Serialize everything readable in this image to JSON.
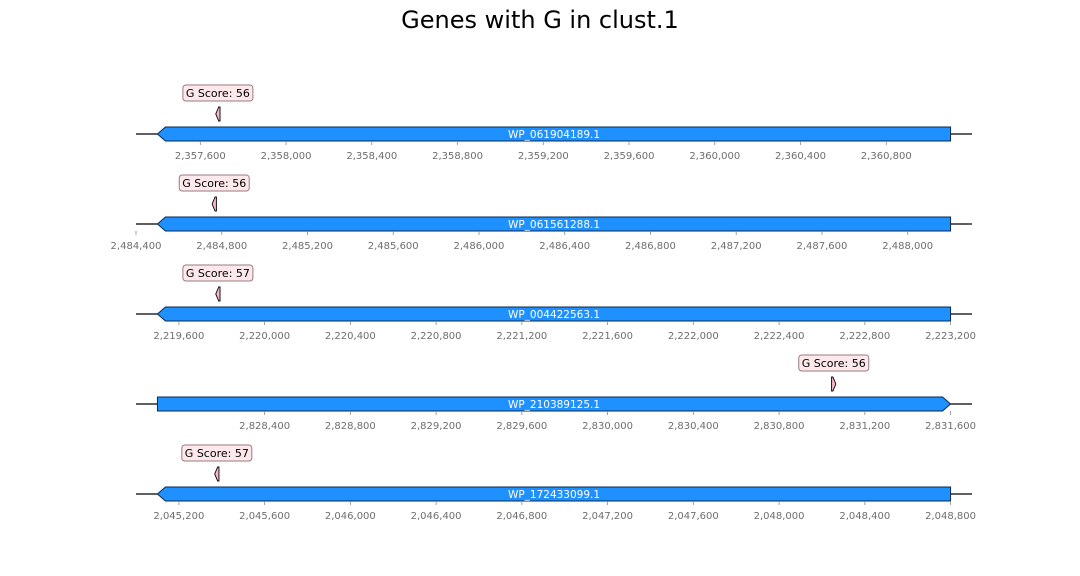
{
  "title": "Genes with G in clust.1",
  "colors": {
    "gene_fill": "#1e90ff",
    "gene_stroke": "#0a2a4a",
    "marker_fill": "#f4b8c6",
    "badge_fill": "#fde8ec",
    "badge_stroke": "#9a7a80",
    "axis_line": "#000000",
    "tick_text": "#6e6e6e"
  },
  "chart_data": {
    "type": "gene-track",
    "tracks": [
      {
        "gene": "WP_061904189.1",
        "strand": "-",
        "gene_start": 2357400,
        "gene_end": 2361100,
        "view_start": 2357300,
        "view_end": 2361200,
        "ticks": [
          2357600,
          2358000,
          2358400,
          2358800,
          2359200,
          2359600,
          2360000,
          2360400,
          2360800
        ],
        "tick_labels": [
          "2,357,600",
          "2,358,000",
          "2,358,400",
          "2,358,800",
          "2,359,200",
          "2,359,600",
          "2,360,000",
          "2,360,400",
          "2,360,800"
        ],
        "feature": {
          "start": 2357672,
          "end": 2357692,
          "strand": "-",
          "label": "G Score: 56"
        }
      },
      {
        "gene": "WP_061561288.1",
        "strand": "-",
        "gene_start": 2484500,
        "gene_end": 2488200,
        "view_start": 2484400,
        "view_end": 2488300,
        "ticks": [
          2484400,
          2484800,
          2485200,
          2485600,
          2486000,
          2486400,
          2486800,
          2487200,
          2487600,
          2488000
        ],
        "tick_labels": [
          "2,484,400",
          "2,484,800",
          "2,485,200",
          "2,485,600",
          "2,486,000",
          "2,486,400",
          "2,486,800",
          "2,487,200",
          "2,487,600",
          "2,488,000"
        ],
        "feature": {
          "start": 2484755,
          "end": 2484775,
          "strand": "-",
          "label": "G Score: 56"
        }
      },
      {
        "gene": "WP_004422563.1",
        "strand": "-",
        "gene_start": 2219500,
        "gene_end": 2223200,
        "view_start": 2219400,
        "view_end": 2223300,
        "ticks": [
          2219600,
          2220000,
          2220400,
          2220800,
          2221200,
          2221600,
          2222000,
          2222400,
          2222800,
          2223200
        ],
        "tick_labels": [
          "2,219,600",
          "2,220,000",
          "2,220,400",
          "2,220,800",
          "2,221,200",
          "2,221,600",
          "2,222,000",
          "2,222,400",
          "2,222,800",
          "2,223,200"
        ],
        "feature": {
          "start": 2219772,
          "end": 2219792,
          "strand": "-",
          "label": "G Score: 57"
        }
      },
      {
        "gene": "WP_210389125.1",
        "strand": "+",
        "gene_start": 2827900,
        "gene_end": 2831600,
        "view_start": 2827800,
        "view_end": 2831700,
        "ticks": [
          2828400,
          2828800,
          2829200,
          2829600,
          2830000,
          2830400,
          2830800,
          2831200,
          2831600
        ],
        "tick_labels": [
          "2,828,400",
          "2,828,800",
          "2,829,200",
          "2,829,600",
          "2,830,000",
          "2,830,400",
          "2,830,800",
          "2,831,200",
          "2,831,600"
        ],
        "feature": {
          "start": 2831045,
          "end": 2831065,
          "strand": "+",
          "label": "G Score: 56"
        }
      },
      {
        "gene": "WP_172433099.1",
        "strand": "-",
        "gene_start": 2045100,
        "gene_end": 2048800,
        "view_start": 2045000,
        "view_end": 2048900,
        "ticks": [
          2045200,
          2045600,
          2046000,
          2046400,
          2046800,
          2047200,
          2047600,
          2048000,
          2048400,
          2048800
        ],
        "tick_labels": [
          "2,045,200",
          "2,045,600",
          "2,046,000",
          "2,046,400",
          "2,046,800",
          "2,047,200",
          "2,047,600",
          "2,048,000",
          "2,048,400",
          "2,048,800"
        ],
        "feature": {
          "start": 2045367,
          "end": 2045387,
          "strand": "-",
          "label": "G Score: 57"
        }
      }
    ]
  }
}
